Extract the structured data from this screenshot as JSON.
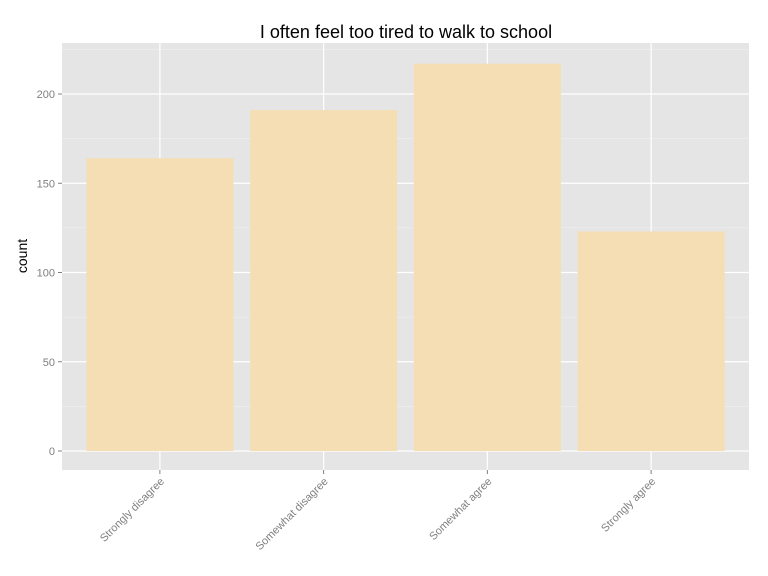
{
  "chart_data": {
    "type": "bar",
    "title": "I often feel too tired to walk to school",
    "xlabel": "",
    "ylabel": "count",
    "categories": [
      "Strongly disagree",
      "Somewhat disagree",
      "Somewhat agree",
      "Strongly agree"
    ],
    "values": [
      164,
      191,
      217,
      123
    ],
    "yticks": [
      0,
      50,
      100,
      150,
      200
    ],
    "ylim": [
      0,
      225
    ],
    "grid": true,
    "legend": "none",
    "colors": {
      "bar": "#f5deb3",
      "panel": "#e5e5e5",
      "gridline": "#ffffff",
      "tick_text": "#7f7f7f"
    }
  }
}
